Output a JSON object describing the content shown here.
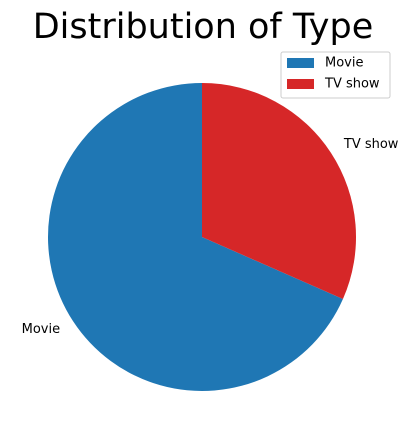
{
  "chart_data": {
    "type": "pie",
    "title": "Distribution of Type",
    "categories": [
      "Movie",
      "TV show"
    ],
    "values": [
      68.4,
      31.6
    ],
    "colors": [
      "#1f77b4",
      "#d62728"
    ],
    "start_angle_deg": 90,
    "direction": "counterclockwise",
    "legend": {
      "placement": "top-right",
      "entries": [
        "Movie",
        "TV show"
      ]
    }
  }
}
